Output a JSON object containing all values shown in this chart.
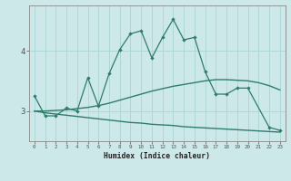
{
  "xlabel": "Humidex (Indice chaleur)",
  "x": [
    0,
    1,
    2,
    3,
    4,
    5,
    6,
    7,
    8,
    9,
    10,
    11,
    12,
    13,
    14,
    15,
    16,
    17,
    18,
    19,
    20,
    21,
    22,
    23
  ],
  "line_upper": [
    3.25,
    2.92,
    2.92,
    3.05,
    3.0,
    3.55,
    3.08,
    3.62,
    4.02,
    4.28,
    4.33,
    3.88,
    4.22,
    4.52,
    4.18,
    4.22,
    3.65,
    3.28,
    3.28,
    3.38,
    3.38,
    null,
    2.73,
    2.68
  ],
  "line_rising": [
    3.0,
    3.0,
    3.01,
    3.02,
    3.04,
    3.06,
    3.09,
    3.13,
    3.18,
    3.23,
    3.28,
    3.33,
    3.37,
    3.41,
    3.44,
    3.47,
    3.5,
    3.52,
    3.52,
    3.51,
    3.5,
    3.47,
    3.42,
    3.35
  ],
  "line_falling": [
    3.0,
    2.97,
    2.95,
    2.93,
    2.91,
    2.89,
    2.87,
    2.85,
    2.83,
    2.81,
    2.8,
    2.78,
    2.77,
    2.76,
    2.74,
    2.73,
    2.72,
    2.71,
    2.7,
    2.69,
    2.68,
    2.67,
    2.66,
    2.65
  ],
  "color": "#2E7D6B",
  "bg_color": "#cce8e8",
  "grid_color": "#aad4d4",
  "ylim": [
    2.5,
    4.75
  ],
  "yticks": [
    3,
    4
  ],
  "xlim": [
    -0.5,
    23.5
  ]
}
